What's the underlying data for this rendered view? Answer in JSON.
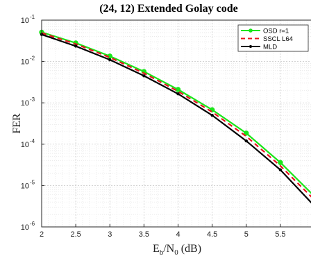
{
  "chart_data": {
    "type": "line",
    "title": "(24, 12) Extended Golay code",
    "xlabel": {
      "main": "E",
      "sub1": "b",
      "mid": "/N",
      "sub2": "0",
      "unit": " (dB)"
    },
    "ylabel": "FER",
    "xlim": [
      2,
      6
    ],
    "ylim": [
      1e-06,
      0.1
    ],
    "yscale": "log",
    "xticks": [
      2,
      2.5,
      3,
      3.5,
      4,
      4.5,
      5,
      5.5
    ],
    "xtick_labels": [
      "2",
      "2.5",
      "3",
      "3.5",
      "4",
      "4.5",
      "5",
      "5.5"
    ],
    "ytick_labels": [
      {
        "base": "10",
        "exp": "-1"
      },
      {
        "base": "10",
        "exp": "-2"
      },
      {
        "base": "10",
        "exp": "-3"
      },
      {
        "base": "10",
        "exp": "-4"
      },
      {
        "base": "10",
        "exp": "-5"
      },
      {
        "base": "10",
        "exp": "-6"
      }
    ],
    "grid": true,
    "minor_grid": true,
    "legend_position": "top-right",
    "series": [
      {
        "name": "OSD r=1",
        "color": "#19e619",
        "dash": "solid",
        "marker": "circle",
        "x": [
          2,
          2.5,
          3,
          3.5,
          4,
          4.5,
          5,
          5.5,
          6
        ],
        "y": [
          0.051,
          0.028,
          0.0135,
          0.0057,
          0.0021,
          0.00068,
          0.000185,
          3.6e-05,
          5.5e-06
        ]
      },
      {
        "name": "SSCL L64",
        "color": "#e8141e",
        "dash": "dashed",
        "marker": "none",
        "x": [
          2,
          2.5,
          3,
          3.5,
          4,
          4.5,
          5,
          5.5,
          6
        ],
        "y": [
          0.049,
          0.0265,
          0.0125,
          0.0052,
          0.0019,
          0.0006,
          0.000155,
          3e-05,
          4.5e-06
        ]
      },
      {
        "name": "MLD",
        "color": "#000000",
        "dash": "solid",
        "marker": "dot",
        "x": [
          2,
          2.5,
          3,
          3.5,
          4,
          4.5,
          5,
          5.5,
          6
        ],
        "y": [
          0.045,
          0.0235,
          0.011,
          0.0045,
          0.00165,
          0.0005,
          0.00012,
          2.4e-05,
          3.2e-06
        ]
      }
    ]
  }
}
